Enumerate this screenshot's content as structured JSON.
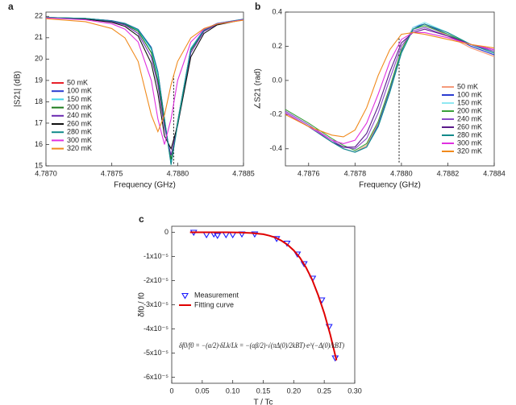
{
  "chart_data": [
    {
      "type": "line",
      "panel": "a",
      "xlabel": "Frequency (GHz)",
      "ylabel": "|S21| (dB)",
      "xlim": [
        4.787,
        4.7885
      ],
      "xticks": [
        {
          "value": 4.787,
          "label": "4.7870"
        },
        4.7875,
        {
          "value": 4.788,
          "label": "4.7880"
        },
        4.7885
      ],
      "ylim": [
        15,
        22.2
      ],
      "yticks": [
        15,
        16,
        17,
        18,
        19,
        20,
        21,
        22
      ],
      "x": [
        4.787,
        4.7873,
        4.7875,
        4.7876,
        4.7877,
        4.7878,
        4.78785,
        4.7879,
        4.78795,
        4.788,
        4.7881,
        4.7882,
        4.7883,
        4.7885
      ],
      "vline": {
        "x": 4.78797,
        "y": [
          15.1,
          19.3
        ]
      },
      "series": [
        {
          "name": "50 mK",
          "color": "#e8202a",
          "values": [
            21.95,
            21.9,
            21.79,
            21.66,
            21.37,
            20.5,
            19.34,
            17.11,
            15.2,
            17.11,
            20.5,
            21.37,
            21.66,
            21.86
          ]
        },
        {
          "name": "100 mK",
          "color": "#2a3bd0",
          "values": [
            21.95,
            21.9,
            21.8,
            21.67,
            21.39,
            20.55,
            19.4,
            17.2,
            15.1,
            17.0,
            20.5,
            21.38,
            21.67,
            21.87
          ]
        },
        {
          "name": "150 mK",
          "color": "#3fd4e6",
          "values": [
            21.95,
            21.9,
            21.78,
            21.65,
            21.35,
            20.45,
            19.25,
            17.1,
            15.2,
            17.1,
            20.5,
            21.36,
            21.66,
            21.86
          ]
        },
        {
          "name": "200 mK",
          "color": "#1a7a1a",
          "values": [
            21.95,
            21.89,
            21.77,
            21.63,
            21.3,
            20.3,
            19.0,
            17.0,
            15.3,
            17.0,
            20.4,
            21.33,
            21.65,
            21.86
          ]
        },
        {
          "name": "240 mK",
          "color": "#6a2ab0",
          "values": [
            21.94,
            21.88,
            21.75,
            21.6,
            21.2,
            20.1,
            18.8,
            16.8,
            15.5,
            16.9,
            20.3,
            21.3,
            21.63,
            21.85
          ]
        },
        {
          "name": "260 mK",
          "color": "#111111",
          "values": [
            21.94,
            21.87,
            21.72,
            21.53,
            21.08,
            19.8,
            18.4,
            16.4,
            15.8,
            16.9,
            20.1,
            21.2,
            21.6,
            21.85
          ]
        },
        {
          "name": "280 mK",
          "color": "#128a8a",
          "values": [
            21.95,
            21.9,
            21.79,
            21.66,
            21.38,
            20.52,
            19.38,
            17.2,
            15.05,
            16.95,
            20.45,
            21.36,
            21.66,
            21.86
          ]
        },
        {
          "name": "300 mK",
          "color": "#e030e0",
          "values": [
            21.93,
            21.84,
            21.65,
            21.4,
            20.8,
            19.0,
            17.2,
            16.0,
            17.2,
            19.0,
            20.8,
            21.4,
            21.65,
            21.84
          ]
        },
        {
          "name": "320 mK",
          "color": "#f08a1c",
          "values": [
            21.89,
            21.75,
            21.43,
            20.99,
            19.89,
            17.38,
            16.6,
            17.38,
            18.8,
            19.89,
            20.99,
            21.43,
            21.64,
            21.82
          ]
        }
      ]
    },
    {
      "type": "line",
      "panel": "b",
      "xlabel": "Frequency (GHz)",
      "ylabel": "∠S21 (rad)",
      "xlim": [
        4.7875,
        4.7884
      ],
      "xticks": [
        4.7876,
        4.7878,
        {
          "value": 4.788,
          "label": "4.7880"
        },
        4.7882,
        4.7884
      ],
      "ylim": [
        -0.5,
        0.4
      ],
      "yticks": [
        -0.4,
        -0.2,
        {
          "value": 0,
          "label": "0.0"
        },
        0.2,
        0.4
      ],
      "x": [
        4.7875,
        4.7876,
        4.7877,
        4.78775,
        4.7878,
        4.78785,
        4.7879,
        4.78795,
        4.788,
        4.78805,
        4.7881,
        4.7882,
        4.7883,
        4.7884
      ],
      "vline": {
        "x": 4.78799,
        "y": [
          -0.48,
          0.25
        ]
      },
      "series": [
        {
          "name": "50 mK",
          "color": "#f59a7a",
          "values": [
            -0.19,
            -0.27,
            -0.36,
            -0.4,
            -0.42,
            -0.38,
            -0.25,
            -0.05,
            0.18,
            0.31,
            0.33,
            0.26,
            0.19,
            0.14
          ]
        },
        {
          "name": "100 mK",
          "color": "#2a3bd0",
          "values": [
            -0.19,
            -0.27,
            -0.36,
            -0.4,
            -0.42,
            -0.39,
            -0.26,
            -0.06,
            0.17,
            0.31,
            0.33,
            0.27,
            0.2,
            0.15
          ]
        },
        {
          "name": "150 mK",
          "color": "#8fe8f2",
          "values": [
            -0.19,
            -0.27,
            -0.36,
            -0.4,
            -0.42,
            -0.39,
            -0.27,
            -0.07,
            0.16,
            0.31,
            0.34,
            0.28,
            0.21,
            0.16
          ]
        },
        {
          "name": "200 mK",
          "color": "#3aa03a",
          "values": [
            -0.17,
            -0.25,
            -0.34,
            -0.38,
            -0.41,
            -0.37,
            -0.24,
            -0.04,
            0.18,
            0.3,
            0.32,
            0.27,
            0.21,
            0.17
          ]
        },
        {
          "name": "240 mK",
          "color": "#8a4ac8",
          "values": [
            -0.18,
            -0.26,
            -0.35,
            -0.39,
            -0.4,
            -0.34,
            -0.19,
            0.01,
            0.2,
            0.29,
            0.31,
            0.26,
            0.21,
            0.17
          ]
        },
        {
          "name": "260 mK",
          "color": "#5a1a8a",
          "values": [
            -0.19,
            -0.27,
            -0.36,
            -0.39,
            -0.39,
            -0.31,
            -0.15,
            0.05,
            0.22,
            0.28,
            0.3,
            0.26,
            0.21,
            0.18
          ]
        },
        {
          "name": "280 mK",
          "color": "#128a8a",
          "values": [
            -0.19,
            -0.27,
            -0.36,
            -0.4,
            -0.42,
            -0.39,
            -0.27,
            -0.07,
            0.16,
            0.3,
            0.33,
            0.28,
            0.21,
            0.16
          ]
        },
        {
          "name": "300 mK",
          "color": "#e030e0",
          "values": [
            -0.19,
            -0.27,
            -0.35,
            -0.37,
            -0.35,
            -0.25,
            -0.08,
            0.11,
            0.24,
            0.28,
            0.28,
            0.25,
            0.21,
            0.18
          ]
        },
        {
          "name": "320 mK",
          "color": "#f08a1c",
          "values": [
            -0.2,
            -0.27,
            -0.32,
            -0.33,
            -0.29,
            -0.16,
            0.03,
            0.18,
            0.27,
            0.28,
            0.27,
            0.24,
            0.21,
            0.19
          ]
        }
      ]
    },
    {
      "type": "line",
      "panel": "c",
      "xlabel": "T / Tc",
      "ylabel": "δf0 / f0",
      "annotation": "δf0/f0 = −(α/2)·δLk/Lk = −(αβ/2)·√(πΔ(0)/2kBT)·e^(−Δ(0)/kBT)",
      "xlim": [
        0,
        0.3
      ],
      "xticks": [
        0,
        0.05,
        {
          "value": 0.1,
          "label": "0.10"
        },
        0.15,
        {
          "value": 0.2,
          "label": "0.20"
        },
        0.25,
        {
          "value": 0.3,
          "label": "0.30"
        }
      ],
      "ylim": [
        -6.25e-05,
        2.5e-06
      ],
      "yticks": [
        0,
        {
          "value": -1e-05,
          "label": "-1x10⁻⁵"
        },
        {
          "value": -2e-05,
          "label": "-2x10⁻⁵"
        },
        {
          "value": -3e-05,
          "label": "-3x10⁻⁵"
        },
        {
          "value": -4e-05,
          "label": "-4x10⁻⁵"
        },
        {
          "value": -5e-05,
          "label": "-5x10⁻⁵"
        },
        {
          "value": -6e-05,
          "label": "-6x10⁻⁵"
        }
      ],
      "series": [
        {
          "name": "Measurement",
          "color": "#1a1aff",
          "marker": "triangle-down",
          "x": [
            0.036,
            0.057,
            0.069,
            0.075,
            0.089,
            0.1,
            0.115,
            0.136,
            0.172,
            0.189,
            0.206,
            0.217,
            0.231,
            0.246,
            0.258,
            0.268
          ],
          "values": [
            0,
            -1e-06,
            -7e-07,
            -1.3e-06,
            -1e-06,
            -1e-06,
            -7e-07,
            -7e-07,
            -2.6e-06,
            -4.5e-06,
            -9e-06,
            -1.3e-05,
            -1.9e-05,
            -2.8e-05,
            -3.9e-05,
            -5.2e-05
          ]
        },
        {
          "name": "Fitting curve",
          "color": "#e00000",
          "x": [
            0.03,
            0.05,
            0.07,
            0.09,
            0.11,
            0.13,
            0.15,
            0.16,
            0.17,
            0.18,
            0.19,
            0.2,
            0.21,
            0.22,
            0.23,
            0.24,
            0.25,
            0.26,
            0.27
          ],
          "values": [
            0,
            0,
            0,
            0,
            -1e-07,
            -3e-07,
            -8e-07,
            -1.4e-06,
            -2.2e-06,
            -3.5e-06,
            -5.2e-06,
            -7.5e-06,
            -1.05e-05,
            -1.45e-05,
            -1.95e-05,
            -2.6e-05,
            -3.35e-05,
            -4.25e-05,
            -5.3e-05
          ]
        }
      ]
    }
  ]
}
